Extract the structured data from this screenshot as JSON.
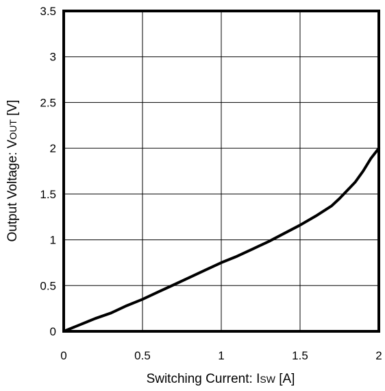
{
  "chart_data": {
    "type": "line",
    "xlabel": {
      "prefix": "Switching Current: I",
      "subscript": "SW",
      "suffix": " [A]"
    },
    "ylabel": {
      "prefix": "Output Voltage: V",
      "subscript": "OUT",
      "suffix": " [V]"
    },
    "xlim": [
      0,
      2
    ],
    "ylim": [
      0,
      3.5
    ],
    "x_ticks": [
      0,
      0.5,
      1,
      1.5,
      2
    ],
    "x_tick_labels": [
      "0",
      "0.5",
      "1",
      "1.5",
      "2"
    ],
    "y_ticks": [
      0,
      0.5,
      1,
      1.5,
      2,
      2.5,
      3,
      3.5
    ],
    "y_tick_labels": [
      "0",
      "0.5",
      "1",
      "1.5",
      "2",
      "2.5",
      "3",
      "3.5"
    ],
    "grid": true,
    "series": [
      {
        "x": [
          0,
          0.1,
          0.2,
          0.3,
          0.4,
          0.5,
          0.6,
          0.7,
          0.8,
          0.9,
          1.0,
          1.1,
          1.2,
          1.3,
          1.4,
          1.5,
          1.6,
          1.7,
          1.75,
          1.8,
          1.85,
          1.9,
          1.95,
          2.0
        ],
        "y": [
          0,
          0.07,
          0.14,
          0.2,
          0.28,
          0.35,
          0.43,
          0.51,
          0.59,
          0.67,
          0.75,
          0.82,
          0.9,
          0.98,
          1.07,
          1.16,
          1.26,
          1.37,
          1.45,
          1.54,
          1.63,
          1.75,
          1.89,
          2.0
        ],
        "color": "#000000"
      }
    ]
  }
}
